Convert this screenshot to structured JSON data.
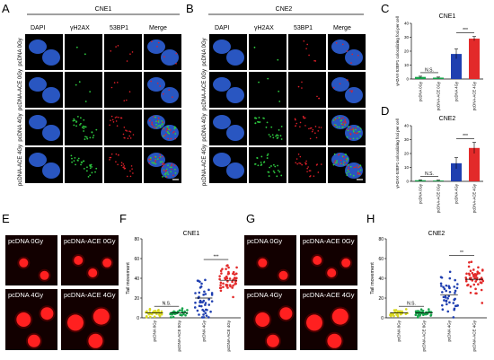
{
  "panels": {
    "A": {
      "letter": "A",
      "header": "CNE1",
      "columns": [
        "DAPI",
        "γH2AX",
        "53BP1",
        "Merge"
      ],
      "rows": [
        "pcDNA 0Gy",
        "pcDNA-ACE 0Gy",
        "pcDNA 4Gy",
        "pcDNA-ACE 4Gy"
      ]
    },
    "B": {
      "letter": "B",
      "header": "CNE2",
      "columns": [
        "DAPI",
        "γH2AX",
        "53BP1",
        "Merge"
      ],
      "rows": [
        "pcDNA 0Gy",
        "pcDNA-ACE 0Gy",
        "pcDNA 4Gy",
        "pcDNA-ACE 4Gy"
      ]
    },
    "C": {
      "letter": "C"
    },
    "D": {
      "letter": "D"
    },
    "E": {
      "letter": "E",
      "labels": [
        "pcDNA 0Gy",
        "pcDNA-ACE 0Gy",
        "pcDNA 4Gy",
        "pcDNA-ACE 4Gy"
      ]
    },
    "F": {
      "letter": "F"
    },
    "G": {
      "letter": "G",
      "labels": [
        "pcDNA 0Gy",
        "pcDNA-ACE 0Gy",
        "pcDNA 4Gy",
        "pcDNA-ACE 4Gy"
      ]
    },
    "H": {
      "letter": "H"
    }
  },
  "colors": {
    "dapi": "#2d5fd6",
    "gh2ax": "#2ecc40",
    "bp53": "#e0202a",
    "green_bar": "#16a34a",
    "blue_bar": "#1f3fb0",
    "red_bar": "#e32a2a",
    "yellow_dot": "#d8d81f",
    "comet": "#ff2020"
  },
  "chart_data": [
    {
      "panel": "C",
      "type": "bar",
      "title": "CNE1",
      "ylabel": "γH2AX-53BP1 colocalizing foci per cell",
      "categories": [
        "pcDNA 0Gy",
        "pcDNA-ACE 0Gy",
        "pcDNA 4Gy",
        "pcDNA-ACE 4Gy"
      ],
      "values": [
        1.5,
        1.0,
        18,
        29
      ],
      "errors": [
        0.5,
        0.4,
        3.5,
        1.5
      ],
      "ylim": [
        0,
        40
      ],
      "yticks": [
        0,
        10,
        20,
        30,
        40
      ],
      "bar_colors": [
        "#16a34a",
        "#16a34a",
        "#1f3fb0",
        "#e32a2a"
      ],
      "annotations": [
        {
          "text": "N.S.",
          "from": 0,
          "to": 1
        },
        {
          "text": "***",
          "from": 2,
          "to": 3
        }
      ]
    },
    {
      "panel": "D",
      "type": "bar",
      "title": "CNE2",
      "ylabel": "γH2AX-53BP1 colocalizing foci per cell",
      "categories": [
        "pcDNA 0Gy",
        "pcDNA-ACE 0Gy",
        "pcDNA 4Gy",
        "pcDNA-ACE 4Gy"
      ],
      "values": [
        0.8,
        0.6,
        13,
        24
      ],
      "errors": [
        0.3,
        0.3,
        4,
        4
      ],
      "ylim": [
        0,
        40
      ],
      "yticks": [
        0,
        10,
        20,
        30,
        40
      ],
      "bar_colors": [
        "#16a34a",
        "#16a34a",
        "#1f3fb0",
        "#e32a2a"
      ],
      "annotations": [
        {
          "text": "N.S.",
          "from": 0,
          "to": 1
        },
        {
          "text": "***",
          "from": 2,
          "to": 3
        }
      ]
    },
    {
      "panel": "F",
      "type": "scatter",
      "title": "CNE1",
      "ylabel": "Tail movement",
      "categories": [
        "pcDNA 0Gy",
        "pcDNA-ACE 0Gy",
        "pcDNA 4Gy",
        "pcDNA-ACE 4Gy"
      ],
      "means": [
        5,
        5,
        20,
        38
      ],
      "spread": [
        3,
        3,
        15,
        12
      ],
      "n_points": [
        30,
        30,
        45,
        50
      ],
      "ylim": [
        0,
        80
      ],
      "yticks": [
        0,
        20,
        40,
        60,
        80
      ],
      "dot_colors": [
        "#d8d81f",
        "#16a34a",
        "#1f3fb0",
        "#e32a2a"
      ],
      "annotations": [
        {
          "text": "N.S.",
          "from": 0,
          "to": 1
        },
        {
          "text": "***",
          "from": 2,
          "to": 3
        }
      ]
    },
    {
      "panel": "H",
      "type": "scatter",
      "title": "CNE2",
      "ylabel": "Tail movement",
      "categories": [
        "pcDNA 0Gy",
        "pcDNA-ACE 0Gy",
        "pcDNA 4Gy",
        "pcDNA-ACE 4Gy"
      ],
      "means": [
        5,
        5,
        23,
        39
      ],
      "spread": [
        3,
        3,
        16,
        14
      ],
      "n_points": [
        30,
        30,
        45,
        50
      ],
      "ylim": [
        0,
        80
      ],
      "yticks": [
        0,
        20,
        40,
        60,
        80
      ],
      "dot_colors": [
        "#d8d81f",
        "#16a34a",
        "#1f3fb0",
        "#e32a2a"
      ],
      "annotations": [
        {
          "text": "N.S.",
          "from": 0,
          "to": 1
        },
        {
          "text": "**",
          "from": 2,
          "to": 3
        }
      ]
    }
  ]
}
